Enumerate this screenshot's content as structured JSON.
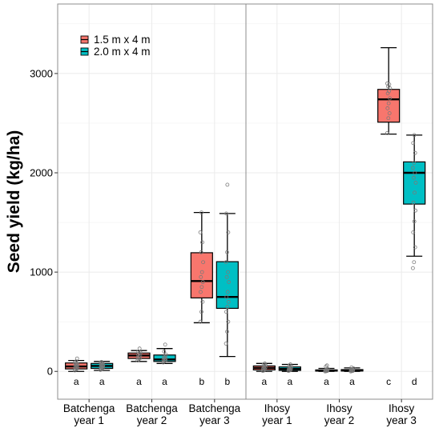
{
  "chart_data": {
    "type": "box",
    "ylabel": "Seed yield (kg/ha)",
    "xlabel": "",
    "ylim": [
      -280,
      3700
    ],
    "yticks": [
      0,
      1000,
      2000,
      3000
    ],
    "grid": true,
    "legend_position": "top-left",
    "series": [
      {
        "name": "1.5 m x 4 m",
        "color": "#F8766D"
      },
      {
        "name": "2.0 m x 4 m",
        "color": "#00BFC4"
      }
    ],
    "panels": [
      {
        "name": "Batchenga",
        "groups": [
          {
            "label": [
              "Batchenga",
              "year 1"
            ],
            "boxes": [
              {
                "series": 0,
                "min": 0,
                "q1": 25,
                "median": 50,
                "q3": 85,
                "max": 110,
                "points": [
                  10,
                  20,
                  30,
                  35,
                  40,
                  45,
                  50,
                  60,
                  70,
                  75,
                  80,
                  90,
                  100,
                  130
                ],
                "letter": "a"
              },
              {
                "series": 1,
                "min": 10,
                "q1": 30,
                "median": 55,
                "q3": 80,
                "max": 100,
                "points": [
                  15,
                  25,
                  35,
                  40,
                  45,
                  50,
                  55,
                  60,
                  65,
                  70,
                  80,
                  90,
                  95
                ],
                "letter": "a"
              }
            ]
          },
          {
            "label": [
              "Batchenga",
              "year 2"
            ],
            "boxes": [
              {
                "series": 0,
                "min": 100,
                "q1": 130,
                "median": 160,
                "q3": 185,
                "max": 210,
                "points": [
                  110,
                  120,
                  130,
                  140,
                  150,
                  160,
                  170,
                  180,
                  190,
                  200,
                  230
                ],
                "letter": "a"
              },
              {
                "series": 1,
                "min": 80,
                "q1": 100,
                "median": 120,
                "q3": 165,
                "max": 230,
                "points": [
                  90,
                  100,
                  110,
                  115,
                  120,
                  130,
                  140,
                  150,
                  170,
                  200,
                  270
                ],
                "letter": "a"
              }
            ]
          },
          {
            "label": [
              "Batchenga",
              "year 3"
            ],
            "boxes": [
              {
                "series": 0,
                "min": 490,
                "q1": 740,
                "median": 910,
                "q3": 1195,
                "max": 1600,
                "points": [
                  500,
                  600,
                  700,
                  800,
                  850,
                  900,
                  950,
                  1000,
                  1100,
                  1200,
                  1300,
                  1400,
                  1600
                ],
                "letter": "b"
              },
              {
                "series": 1,
                "min": 150,
                "q1": 635,
                "median": 750,
                "q3": 1105,
                "max": 1590,
                "points": [
                  280,
                  400,
                  500,
                  600,
                  650,
                  700,
                  750,
                  800,
                  900,
                  950,
                  1000,
                  1100,
                  1200,
                  1400,
                  1590,
                  1880
                ],
                "letter": "b"
              }
            ]
          }
        ]
      },
      {
        "name": "Ihosy",
        "groups": [
          {
            "label": [
              "Ihosy",
              "year 1"
            ],
            "boxes": [
              {
                "series": 0,
                "min": 0,
                "q1": 15,
                "median": 35,
                "q3": 55,
                "max": 80,
                "points": [
                  5,
                  10,
                  20,
                  25,
                  30,
                  40,
                  45,
                  50,
                  60,
                  70,
                  80
                ],
                "letter": "a"
              },
              {
                "series": 1,
                "min": 0,
                "q1": 10,
                "median": 25,
                "q3": 45,
                "max": 70,
                "points": [
                  5,
                  10,
                  15,
                  20,
                  25,
                  30,
                  35,
                  40,
                  50,
                  60,
                  70
                ],
                "letter": "a"
              }
            ]
          },
          {
            "label": [
              "Ihosy",
              "year 2"
            ],
            "boxes": [
              {
                "series": 0,
                "min": 0,
                "q1": 3,
                "median": 8,
                "q3": 15,
                "max": 30,
                "points": [
                  0,
                  2,
                  5,
                  8,
                  10,
                  12,
                  15,
                  20,
                  25,
                  50,
                  60
                ],
                "letter": "a"
              },
              {
                "series": 1,
                "min": 0,
                "q1": 4,
                "median": 10,
                "q3": 18,
                "max": 35,
                "points": [
                  0,
                  3,
                  6,
                  9,
                  12,
                  15,
                  18,
                  22,
                  30,
                  40
                ],
                "letter": "a"
              }
            ]
          },
          {
            "label": [
              "Ihosy",
              "year 3"
            ],
            "boxes": [
              {
                "series": 0,
                "min": 2390,
                "q1": 2510,
                "median": 2740,
                "q3": 2840,
                "max": 3260,
                "points": [
                  2400,
                  2550,
                  2600,
                  2650,
                  2700,
                  2750,
                  2800,
                  2820,
                  2850,
                  2870,
                  2890,
                  2900
                ],
                "letter": "c"
              },
              {
                "series": 1,
                "min": 1160,
                "q1": 1685,
                "median": 2000,
                "q3": 2110,
                "max": 2380,
                "points": [
                  1040,
                  1100,
                  1250,
                  1400,
                  1510,
                  1620,
                  1700,
                  1800,
                  1900,
                  1950,
                  2000,
                  2050,
                  2100,
                  2200,
                  2300,
                  2380
                ],
                "letter": "d"
              }
            ]
          }
        ]
      }
    ]
  }
}
